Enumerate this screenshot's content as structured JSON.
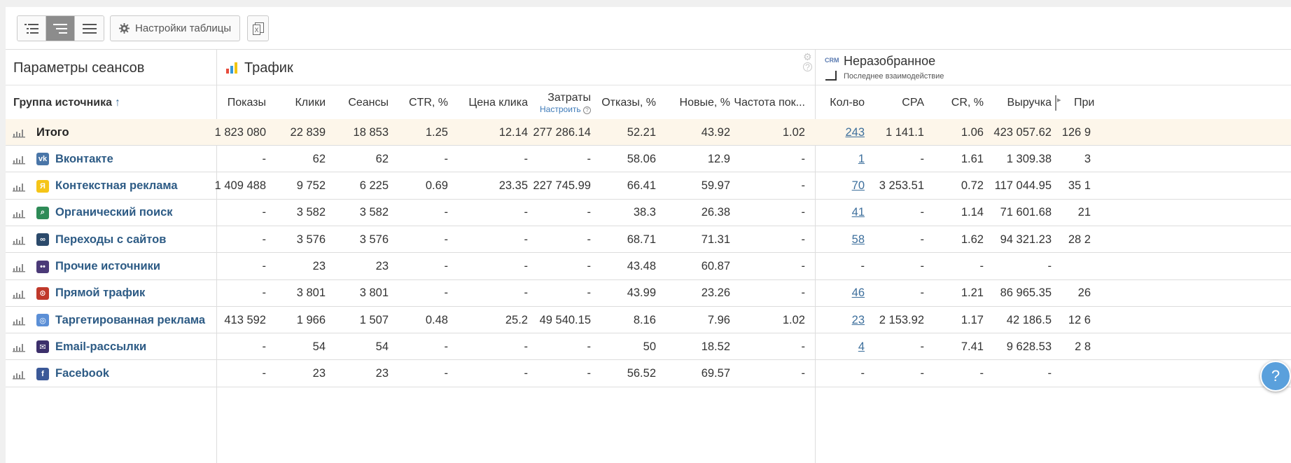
{
  "toolbar": {
    "settings_label": "Настройки таблицы"
  },
  "groups": {
    "session_params": "Параметры сеансов",
    "traffic": "Трафик",
    "crm_badge": "CRM",
    "unsorted": "Неразобранное",
    "last_interaction": "Последнее взаимодействие"
  },
  "columns": {
    "group": "Группа источника",
    "shows": "Показы",
    "clicks": "Клики",
    "sessions": "Сеансы",
    "ctr": "CTR, %",
    "cpc": "Цена клика",
    "costs": "Затраты",
    "costs_sub": "Настроить",
    "bounce": "Отказы, %",
    "new": "Новые, %",
    "freq": "Частота пок...",
    "count": "Кол-во",
    "cpa": "CPA",
    "cr": "CR, %",
    "revenue": "Выручка",
    "profit": "При"
  },
  "rows": [
    {
      "name": "Итого",
      "icon": "none",
      "shows": "1 823 080",
      "clicks": "22 839",
      "sessions": "18 853",
      "ctr": "1.25",
      "cpc": "12.14",
      "costs": "277 286.14",
      "bounce": "52.21",
      "new": "43.92",
      "freq": "1.02",
      "count": "243",
      "cpa": "1 141.1",
      "cr": "1.06",
      "revenue": "423 057.62",
      "profit": "126 9"
    },
    {
      "name": "Вконтакте",
      "icon": "vk-icon",
      "color": "#4a76a8",
      "glyph": "vk",
      "shows": "-",
      "clicks": "62",
      "sessions": "62",
      "ctr": "-",
      "cpc": "-",
      "costs": "-",
      "bounce": "58.06",
      "new": "12.9",
      "freq": "-",
      "count": "1",
      "cpa": "-",
      "cr": "1.61",
      "revenue": "1 309.38",
      "profit": "3"
    },
    {
      "name": "Контекстная реклама",
      "icon": "yandex-icon",
      "color": "#f5c518",
      "glyph": "Я",
      "shows": "1 409 488",
      "clicks": "9 752",
      "sessions": "6 225",
      "ctr": "0.69",
      "cpc": "23.35",
      "costs": "227 745.99",
      "bounce": "66.41",
      "new": "59.97",
      "freq": "-",
      "count": "70",
      "cpa": "3 253.51",
      "cr": "0.72",
      "revenue": "117 044.95",
      "profit": "35 1"
    },
    {
      "name": "Органический поиск",
      "icon": "search-icon",
      "color": "#2e8b57",
      "glyph": "⌕",
      "shows": "-",
      "clicks": "3 582",
      "sessions": "3 582",
      "ctr": "-",
      "cpc": "-",
      "costs": "-",
      "bounce": "38.3",
      "new": "26.38",
      "freq": "-",
      "count": "41",
      "cpa": "-",
      "cr": "1.14",
      "revenue": "71 601.68",
      "profit": "21"
    },
    {
      "name": "Переходы с сайтов",
      "icon": "link-icon",
      "color": "#2b4a6b",
      "glyph": "∞",
      "shows": "-",
      "clicks": "3 576",
      "sessions": "3 576",
      "ctr": "-",
      "cpc": "-",
      "costs": "-",
      "bounce": "68.71",
      "new": "71.31",
      "freq": "-",
      "count": "58",
      "cpa": "-",
      "cr": "1.62",
      "revenue": "94 321.23",
      "profit": "28 2"
    },
    {
      "name": "Прочие источники",
      "icon": "people-icon",
      "color": "#4b3a78",
      "glyph": "••",
      "shows": "-",
      "clicks": "23",
      "sessions": "23",
      "ctr": "-",
      "cpc": "-",
      "costs": "-",
      "bounce": "43.48",
      "new": "60.87",
      "freq": "-",
      "count": "-",
      "cpa": "-",
      "cr": "-",
      "revenue": "-",
      "profit": ""
    },
    {
      "name": "Прямой трафик",
      "icon": "direct-icon",
      "color": "#c0392b",
      "glyph": "⊙",
      "shows": "-",
      "clicks": "3 801",
      "sessions": "3 801",
      "ctr": "-",
      "cpc": "-",
      "costs": "-",
      "bounce": "43.99",
      "new": "23.26",
      "freq": "-",
      "count": "46",
      "cpa": "-",
      "cr": "1.21",
      "revenue": "86 965.35",
      "profit": "26"
    },
    {
      "name": "Таргетированная реклама",
      "icon": "target-icon",
      "color": "#5b8fd6",
      "glyph": "◎",
      "shows": "413 592",
      "clicks": "1 966",
      "sessions": "1 507",
      "ctr": "0.48",
      "cpc": "25.2",
      "costs": "49 540.15",
      "bounce": "8.16",
      "new": "7.96",
      "freq": "1.02",
      "count": "23",
      "cpa": "2 153.92",
      "cr": "1.17",
      "revenue": "42 186.5",
      "profit": "12 6"
    },
    {
      "name": "Email-рассылки",
      "icon": "mail-icon",
      "color": "#3c2f6b",
      "glyph": "✉",
      "shows": "-",
      "clicks": "54",
      "sessions": "54",
      "ctr": "-",
      "cpc": "-",
      "costs": "-",
      "bounce": "50",
      "new": "18.52",
      "freq": "-",
      "count": "4",
      "cpa": "-",
      "cr": "7.41",
      "revenue": "9 628.53",
      "profit": "2 8"
    },
    {
      "name": "Facebook",
      "icon": "facebook-icon",
      "color": "#3b5998",
      "glyph": "f",
      "shows": "-",
      "clicks": "23",
      "sessions": "23",
      "ctr": "-",
      "cpc": "-",
      "costs": "-",
      "bounce": "56.52",
      "new": "69.57",
      "freq": "-",
      "count": "-",
      "cpa": "-",
      "cr": "-",
      "revenue": "-",
      "profit": ""
    }
  ],
  "help_label": "?"
}
